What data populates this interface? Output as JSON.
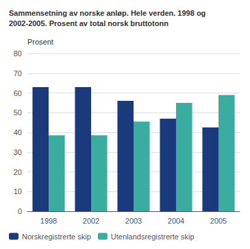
{
  "chart_data": {
    "type": "bar",
    "title": "Sammensetning av norske anløp. Hele verden. 1998 og\n2002-2005. Prosent av total norsk bruttotonn",
    "ylabel": "Prosent",
    "categories": [
      "1998",
      "2002",
      "2003",
      "2004",
      "2005"
    ],
    "series": [
      {
        "name": "Norskregistrerte skip",
        "color": "#1a3a7c",
        "values": [
          63,
          63,
          56,
          47,
          42.5
        ]
      },
      {
        "name": "Utenlandsregistrerte skip",
        "color": "#3aada0",
        "values": [
          38.5,
          38.5,
          45.5,
          55,
          59
        ]
      }
    ],
    "ylim": [
      0,
      80
    ],
    "yticks": [
      0,
      10,
      20,
      30,
      40,
      50,
      60,
      70,
      80
    ],
    "grid": true,
    "legend": "lower left"
  }
}
